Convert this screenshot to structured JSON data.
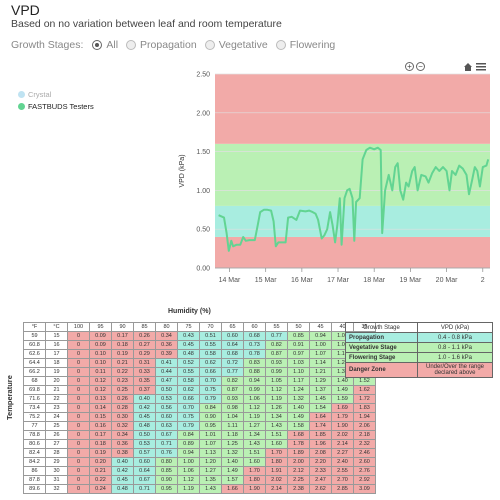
{
  "header": {
    "title": "VPD",
    "subtitle": "Based on no variation between leaf and room temperature"
  },
  "stages": {
    "label": "Growth Stages:",
    "options": [
      {
        "label": "All",
        "selected": true
      },
      {
        "label": "Propagation",
        "selected": false
      },
      {
        "label": "Vegetative",
        "selected": false
      },
      {
        "label": "Flowering",
        "selected": false
      }
    ]
  },
  "legend": [
    {
      "label": "Crystal",
      "color": "#bfe3f2"
    },
    {
      "label": "FASTBUDS Testers",
      "color": "#62d492"
    }
  ],
  "controls": {
    "zoom_in": "+",
    "zoom_out": "−"
  },
  "chart_data": {
    "type": "line",
    "title": "",
    "xlabel": "",
    "ylabel": "VPD (kPa)",
    "ylim": [
      0,
      2.5
    ],
    "yticks": [
      "0.00",
      "0.50",
      "1.00",
      "1.50",
      "2.00",
      "2.50"
    ],
    "xticks": [
      {
        "label": "14 Mar",
        "x": 14
      },
      {
        "label": "15 Mar",
        "x": 15
      },
      {
        "label": "16 Mar",
        "x": 16
      },
      {
        "label": "17 Mar",
        "x": 17
      },
      {
        "label": "18 Mar",
        "x": 18
      },
      {
        "label": "19 Mar",
        "x": 19
      },
      {
        "label": "20 Mar",
        "x": 20
      },
      {
        "label": "2",
        "x": 21
      }
    ],
    "bands": [
      {
        "from": 0,
        "to": 0.4,
        "color": "#f2aaa8"
      },
      {
        "from": 0.4,
        "to": 0.8,
        "color": "#a8ede0"
      },
      {
        "from": 0.8,
        "to": 1.6,
        "color": "#baf0b4"
      },
      {
        "from": 1.6,
        "to": 2.5,
        "color": "#f2aaa8"
      }
    ],
    "series": [
      {
        "name": "FASTBUDS Testers",
        "color": "#62d492",
        "points": [
          [
            13.7,
            0.68
          ],
          [
            13.85,
            0.65
          ],
          [
            13.92,
            0.45
          ],
          [
            13.98,
            0.22
          ],
          [
            14.05,
            0.35
          ],
          [
            14.1,
            0.28
          ],
          [
            14.2,
            0.3
          ],
          [
            14.3,
            0.3
          ],
          [
            14.38,
            0.4
          ],
          [
            14.45,
            0.35
          ],
          [
            14.55,
            0.36
          ],
          [
            14.7,
            0.36
          ],
          [
            14.78,
            0.55
          ],
          [
            14.85,
            0.72
          ],
          [
            14.95,
            0.75
          ],
          [
            15.05,
            0.75
          ],
          [
            15.15,
            0.74
          ],
          [
            15.22,
            0.6
          ],
          [
            15.28,
            0.28
          ],
          [
            15.35,
            0.33
          ],
          [
            15.55,
            0.33
          ],
          [
            15.62,
            0.65
          ],
          [
            15.72,
            0.66
          ],
          [
            15.85,
            0.62
          ],
          [
            15.95,
            0.74
          ],
          [
            16.1,
            0.73
          ],
          [
            16.2,
            0.74
          ],
          [
            16.3,
            0.72
          ],
          [
            16.38,
            0.7
          ],
          [
            16.45,
            0.62
          ],
          [
            16.55,
            0.38
          ],
          [
            16.62,
            0.42
          ],
          [
            16.7,
            0.5
          ],
          [
            16.78,
            0.72
          ],
          [
            16.85,
            0.55
          ],
          [
            16.92,
            0.33
          ],
          [
            16.98,
            0.55
          ],
          [
            17.05,
            0.9
          ],
          [
            17.1,
            0.3
          ],
          [
            17.18,
            0.9
          ],
          [
            17.25,
            1.0
          ],
          [
            17.32,
            1.02
          ],
          [
            17.4,
            0.9
          ],
          [
            17.45,
            0.35
          ],
          [
            17.5,
            0.85
          ],
          [
            17.6,
            0.9
          ],
          [
            17.68,
            1.4
          ],
          [
            17.78,
            1.52
          ],
          [
            17.88,
            1.55
          ],
          [
            18.0,
            1.53
          ],
          [
            18.1,
            1.55
          ],
          [
            18.18,
            1.52
          ],
          [
            18.22,
            0.45
          ],
          [
            18.3,
            1.0
          ],
          [
            18.4,
            1.2
          ],
          [
            18.5,
            1.0
          ],
          [
            18.58,
            1.3
          ],
          [
            18.65,
            1.35
          ],
          [
            18.72,
            1.0
          ],
          [
            18.8,
            0.88
          ],
          [
            18.88,
            1.1
          ],
          [
            18.95,
            1.05
          ],
          [
            19.05,
            1.25
          ],
          [
            19.12,
            1.3
          ],
          [
            19.2,
            1.0
          ],
          [
            19.3,
            1.2
          ],
          [
            19.42,
            1.18
          ],
          [
            19.5,
            1.1
          ],
          [
            19.6,
            1.22
          ],
          [
            19.7,
            1.3
          ],
          [
            19.8,
            1.25
          ],
          [
            19.9,
            1.3
          ],
          [
            20.0,
            1.25
          ],
          [
            20.08,
            1.0
          ],
          [
            20.15,
            1.25
          ],
          [
            20.25,
            1.2
          ],
          [
            20.35,
            1.32
          ],
          [
            20.45,
            1.28
          ],
          [
            20.55,
            1.2
          ],
          [
            20.62,
            0.95
          ],
          [
            20.7,
            1.12
          ],
          [
            20.78,
            1.3
          ],
          [
            20.85,
            1.25
          ],
          [
            20.92,
            1.05
          ],
          [
            21.0,
            1.3
          ],
          [
            21.1,
            1.32
          ],
          [
            21.15,
            1.4
          ]
        ]
      }
    ]
  },
  "vpd_table": {
    "title": "Humidity (%)",
    "row_axis_label": "Temperature",
    "headers": [
      "°F",
      "°C",
      "100",
      "95",
      "90",
      "85",
      "80",
      "75",
      "70",
      "65",
      "60",
      "55",
      "50",
      "45",
      "40",
      "35"
    ],
    "rows": [
      [
        "59",
        "15",
        "0",
        "0.09",
        "0.17",
        "0.26",
        "0.34",
        "0.43",
        "0.51",
        "0.60",
        "0.68",
        "0.77",
        "0.85",
        "0.94",
        "1.02",
        "1.11"
      ],
      [
        "60.8",
        "16",
        "0",
        "0.09",
        "0.18",
        "0.27",
        "0.36",
        "0.45",
        "0.55",
        "0.64",
        "0.73",
        "0.82",
        "0.91",
        "1.00",
        "1.09",
        "1.18"
      ],
      [
        "62.6",
        "17",
        "0",
        "0.10",
        "0.19",
        "0.29",
        "0.39",
        "0.48",
        "0.58",
        "0.68",
        "0.78",
        "0.87",
        "0.97",
        "1.07",
        "1.16",
        "1.26"
      ],
      [
        "64.4",
        "18",
        "0",
        "0.10",
        "0.21",
        "0.31",
        "0.41",
        "0.52",
        "0.62",
        "0.72",
        "0.83",
        "0.93",
        "1.03",
        "1.14",
        "1.24",
        "1.34"
      ],
      [
        "66.2",
        "19",
        "0",
        "0.11",
        "0.22",
        "0.33",
        "0.44",
        "0.55",
        "0.66",
        "0.77",
        "0.88",
        "0.99",
        "1.10",
        "1.21",
        "1.32",
        "1.43"
      ],
      [
        "68",
        "20",
        "0",
        "0.12",
        "0.23",
        "0.35",
        "0.47",
        "0.58",
        "0.70",
        "0.82",
        "0.94",
        "1.05",
        "1.17",
        "1.29",
        "1.40",
        "1.52"
      ],
      [
        "69.8",
        "21",
        "0",
        "0.12",
        "0.25",
        "0.37",
        "0.50",
        "0.62",
        "0.75",
        "0.87",
        "0.99",
        "1.12",
        "1.24",
        "1.37",
        "1.49",
        "1.62"
      ],
      [
        "71.6",
        "22",
        "0",
        "0.13",
        "0.26",
        "0.40",
        "0.53",
        "0.66",
        "0.79",
        "0.93",
        "1.06",
        "1.19",
        "1.32",
        "1.45",
        "1.59",
        "1.72"
      ],
      [
        "73.4",
        "23",
        "0",
        "0.14",
        "0.28",
        "0.42",
        "0.56",
        "0.70",
        "0.84",
        "0.98",
        "1.12",
        "1.26",
        "1.40",
        "1.54",
        "1.69",
        "1.83"
      ],
      [
        "75.2",
        "24",
        "0",
        "0.15",
        "0.30",
        "0.45",
        "0.60",
        "0.75",
        "0.90",
        "1.04",
        "1.19",
        "1.34",
        "1.49",
        "1.64",
        "1.79",
        "1.94"
      ],
      [
        "77",
        "25",
        "0",
        "0.16",
        "0.32",
        "0.48",
        "0.63",
        "0.79",
        "0.95",
        "1.11",
        "1.27",
        "1.43",
        "1.58",
        "1.74",
        "1.90",
        "2.06"
      ],
      [
        "78.8",
        "26",
        "0",
        "0.17",
        "0.34",
        "0.50",
        "0.67",
        "0.84",
        "1.01",
        "1.18",
        "1.34",
        "1.51",
        "1.68",
        "1.85",
        "2.02",
        "2.18"
      ],
      [
        "80.6",
        "27",
        "0",
        "0.18",
        "0.36",
        "0.53",
        "0.71",
        "0.89",
        "1.07",
        "1.25",
        "1.43",
        "1.60",
        "1.78",
        "1.96",
        "2.14",
        "2.32"
      ],
      [
        "82.4",
        "28",
        "0",
        "0.19",
        "0.38",
        "0.57",
        "0.76",
        "0.94",
        "1.13",
        "1.32",
        "1.51",
        "1.70",
        "1.89",
        "2.08",
        "2.27",
        "2.46"
      ],
      [
        "84.2",
        "29",
        "0",
        "0.20",
        "0.40",
        "0.60",
        "0.80",
        "1.00",
        "1.20",
        "1.40",
        "1.60",
        "1.80",
        "2.00",
        "2.20",
        "2.40",
        "2.60"
      ],
      [
        "86",
        "30",
        "0",
        "0.21",
        "0.42",
        "0.64",
        "0.85",
        "1.06",
        "1.27",
        "1.49",
        "1.70",
        "1.91",
        "2.12",
        "2.33",
        "2.55",
        "2.76"
      ],
      [
        "87.8",
        "31",
        "0",
        "0.22",
        "0.45",
        "0.67",
        "0.90",
        "1.12",
        "1.35",
        "1.57",
        "1.80",
        "2.02",
        "2.25",
        "2.47",
        "2.70",
        "2.92"
      ],
      [
        "89.6",
        "32",
        "0",
        "0.24",
        "0.48",
        "0.71",
        "0.95",
        "1.19",
        "1.43",
        "1.66",
        "1.90",
        "2.14",
        "2.38",
        "2.62",
        "2.85",
        "3.09"
      ]
    ]
  },
  "stage_table": {
    "headers": [
      "Growth Stage",
      "VPD (kPa)"
    ],
    "rows": [
      {
        "stage": "Propagation",
        "range": "0.4 - 0.8 kPa",
        "color": "#a8ede0"
      },
      {
        "stage": "Vegetative Stage",
        "range": "0.8 - 1.1 kPa",
        "color": "#baf0b4"
      },
      {
        "stage": "Flowering Stage",
        "range": "1.0 - 1.6 kPa",
        "color": "#baf0b4"
      },
      {
        "stage": "Danger Zone",
        "range": "Under/Over the range declared above",
        "color": "#f2aaa8"
      }
    ]
  },
  "colors": {
    "danger": "#f2aaa8",
    "propagation": "#a8ede0",
    "vegetative": "#baf0b4",
    "flowering": "#baf0b4"
  }
}
